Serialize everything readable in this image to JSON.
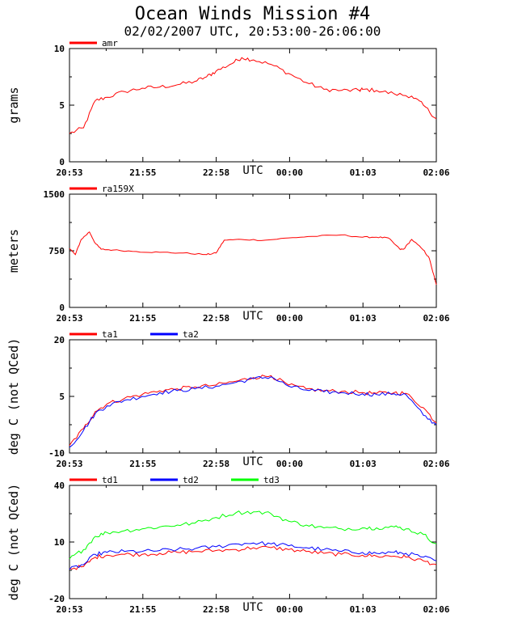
{
  "header": {
    "title": "Ocean Winds Mission #4",
    "subtitle": "02/02/2007  UTC, 20:53:00-26:06:00"
  },
  "colors": {
    "red": "#ff0000",
    "blue": "#0000ff",
    "green": "#00ff00",
    "axis": "#000000"
  },
  "chart_data": [
    {
      "type": "line",
      "ylabel": "grams",
      "xlabel_center": "UTC",
      "x_tick_labels": [
        "20:53",
        "21:55",
        "22:58",
        "00:00",
        "01:03",
        "02:06"
      ],
      "x_tick_label_marker": "UTC",
      "ylim": [
        0,
        10
      ],
      "y_tick_labels": [
        "0",
        "5",
        "10"
      ],
      "legend_position": "top-left",
      "series": [
        {
          "name": "amr",
          "color": "#ff0000",
          "x": [
            "20:53",
            "21:05",
            "21:15",
            "21:25",
            "21:40",
            "21:55",
            "22:10",
            "22:25",
            "22:40",
            "22:50",
            "22:58",
            "23:10",
            "23:20",
            "23:30",
            "23:45",
            "00:00",
            "00:15",
            "00:30",
            "00:45",
            "01:00",
            "01:03",
            "01:15",
            "01:30",
            "01:45",
            "01:55",
            "02:06"
          ],
          "y": [
            2.5,
            3.0,
            5.4,
            5.7,
            6.2,
            6.5,
            6.6,
            6.8,
            7.1,
            7.5,
            8.0,
            8.6,
            9.2,
            9.0,
            8.6,
            7.8,
            7.0,
            6.4,
            6.3,
            6.3,
            6.4,
            6.3,
            6.0,
            5.8,
            5.0,
            3.8
          ]
        }
      ]
    },
    {
      "type": "line",
      "ylabel": "meters",
      "xlabel_center": "UTC",
      "x_tick_labels": [
        "20:53",
        "21:55",
        "22:58",
        "00:00",
        "01:03",
        "02:06"
      ],
      "x_tick_label_marker": "UTC",
      "ylim": [
        0,
        1500
      ],
      "y_tick_labels": [
        "0",
        "750",
        "1500"
      ],
      "legend_position": "top-left",
      "series": [
        {
          "name": "ra159X",
          "color": "#ff0000",
          "x": [
            "20:53",
            "20:58",
            "21:03",
            "21:10",
            "21:15",
            "21:20",
            "21:30",
            "21:50",
            "22:10",
            "22:30",
            "22:50",
            "22:58",
            "23:05",
            "23:20",
            "23:40",
            "00:00",
            "00:20",
            "00:45",
            "01:03",
            "01:15",
            "01:25",
            "01:35",
            "01:38",
            "01:45",
            "01:55",
            "02:00",
            "02:06"
          ],
          "y": [
            780,
            700,
            900,
            1000,
            850,
            770,
            760,
            740,
            730,
            720,
            700,
            720,
            890,
            900,
            890,
            920,
            940,
            960,
            930,
            930,
            920,
            770,
            770,
            900,
            760,
            650,
            300
          ]
        }
      ]
    },
    {
      "type": "line",
      "ylabel": "deg C (not QCed)",
      "xlabel_center": "UTC",
      "x_tick_labels": [
        "20:53",
        "21:55",
        "22:58",
        "00:00",
        "01:03",
        "02:06"
      ],
      "x_tick_label_marker": "UTC",
      "ylim": [
        -10,
        20
      ],
      "y_tick_labels": [
        "-10",
        "5",
        "20"
      ],
      "legend_position": "top-left",
      "series": [
        {
          "name": "ta1",
          "color": "#ff0000",
          "x": [
            "20:53",
            "21:05",
            "21:15",
            "21:25",
            "21:40",
            "21:55",
            "22:10",
            "22:25",
            "22:40",
            "22:58",
            "23:15",
            "23:30",
            "23:45",
            "00:00",
            "00:15",
            "00:30",
            "00:45",
            "01:03",
            "01:15",
            "01:30",
            "01:40",
            "01:55",
            "02:06"
          ],
          "y": [
            -8.0,
            -3.5,
            1.0,
            3.0,
            4.5,
            5.5,
            6.5,
            7.0,
            7.5,
            8.0,
            9.0,
            10.0,
            10.5,
            8.0,
            7.0,
            6.5,
            6.3,
            6.0,
            5.8,
            6.0,
            5.8,
            2.0,
            -2.0
          ]
        },
        {
          "name": "ta2",
          "color": "#0000ff",
          "x": [
            "20:53",
            "21:05",
            "21:15",
            "21:25",
            "21:40",
            "21:55",
            "22:10",
            "22:25",
            "22:40",
            "22:58",
            "23:15",
            "23:30",
            "23:45",
            "00:00",
            "00:15",
            "00:30",
            "00:45",
            "01:03",
            "01:15",
            "01:30",
            "01:40",
            "01:55",
            "02:06"
          ],
          "y": [
            -8.5,
            -4.0,
            0.5,
            2.5,
            4.0,
            5.0,
            6.0,
            6.5,
            7.0,
            7.7,
            8.7,
            9.7,
            10.2,
            7.7,
            6.7,
            6.2,
            6.0,
            5.7,
            5.5,
            5.7,
            5.5,
            0.0,
            -2.5
          ]
        }
      ]
    },
    {
      "type": "line",
      "ylabel": "deg C (not QCed)",
      "xlabel_center": "UTC",
      "x_tick_labels": [
        "20:53",
        "21:55",
        "22:58",
        "00:00",
        "01:03",
        "02:06"
      ],
      "x_tick_label_marker": "UTC",
      "ylim": [
        -20,
        40
      ],
      "y_tick_labels": [
        "-20",
        "10",
        "40"
      ],
      "legend_position": "top-left",
      "series": [
        {
          "name": "td1",
          "color": "#ff0000",
          "x": [
            "20:53",
            "21:05",
            "21:15",
            "21:25",
            "21:40",
            "21:55",
            "22:10",
            "22:25",
            "22:40",
            "22:58",
            "23:15",
            "23:30",
            "23:45",
            "00:00",
            "00:15",
            "00:30",
            "00:45",
            "01:03",
            "01:15",
            "01:30",
            "01:40",
            "01:55",
            "02:06"
          ],
          "y": [
            -4.0,
            -3.0,
            2.0,
            3.0,
            3.5,
            3.5,
            4.0,
            4.5,
            5.0,
            5.5,
            6.0,
            7.0,
            7.0,
            6.0,
            5.0,
            4.0,
            3.5,
            3.0,
            2.5,
            2.5,
            2.0,
            0.0,
            -2.0
          ]
        },
        {
          "name": "td2",
          "color": "#0000ff",
          "x": [
            "20:53",
            "21:05",
            "21:15",
            "21:25",
            "21:40",
            "21:55",
            "22:10",
            "22:25",
            "22:40",
            "22:58",
            "23:15",
            "23:30",
            "23:45",
            "00:00",
            "00:15",
            "00:30",
            "00:45",
            "01:03",
            "01:15",
            "01:30",
            "01:40",
            "01:55",
            "02:06"
          ],
          "y": [
            -4.5,
            -2.0,
            3.5,
            4.5,
            5.0,
            5.0,
            5.5,
            6.0,
            6.5,
            7.5,
            9.0,
            9.5,
            9.0,
            8.0,
            7.0,
            6.0,
            5.0,
            4.5,
            4.0,
            4.5,
            4.0,
            2.0,
            0.0
          ]
        },
        {
          "name": "td3",
          "color": "#00ff00",
          "x": [
            "20:53",
            "21:05",
            "21:15",
            "21:25",
            "21:40",
            "21:55",
            "22:10",
            "22:25",
            "22:40",
            "22:58",
            "23:15",
            "23:30",
            "23:45",
            "00:00",
            "00:15",
            "00:30",
            "00:45",
            "01:03",
            "01:15",
            "01:30",
            "01:40",
            "01:55",
            "02:06"
          ],
          "y": [
            1.0,
            6.0,
            13.0,
            15.0,
            16.0,
            17.0,
            18.0,
            19.0,
            20.0,
            23.0,
            25.5,
            26.0,
            25.0,
            21.0,
            19.0,
            17.5,
            17.0,
            17.5,
            17.5,
            18.0,
            17.0,
            14.0,
            9.0
          ]
        }
      ]
    }
  ]
}
